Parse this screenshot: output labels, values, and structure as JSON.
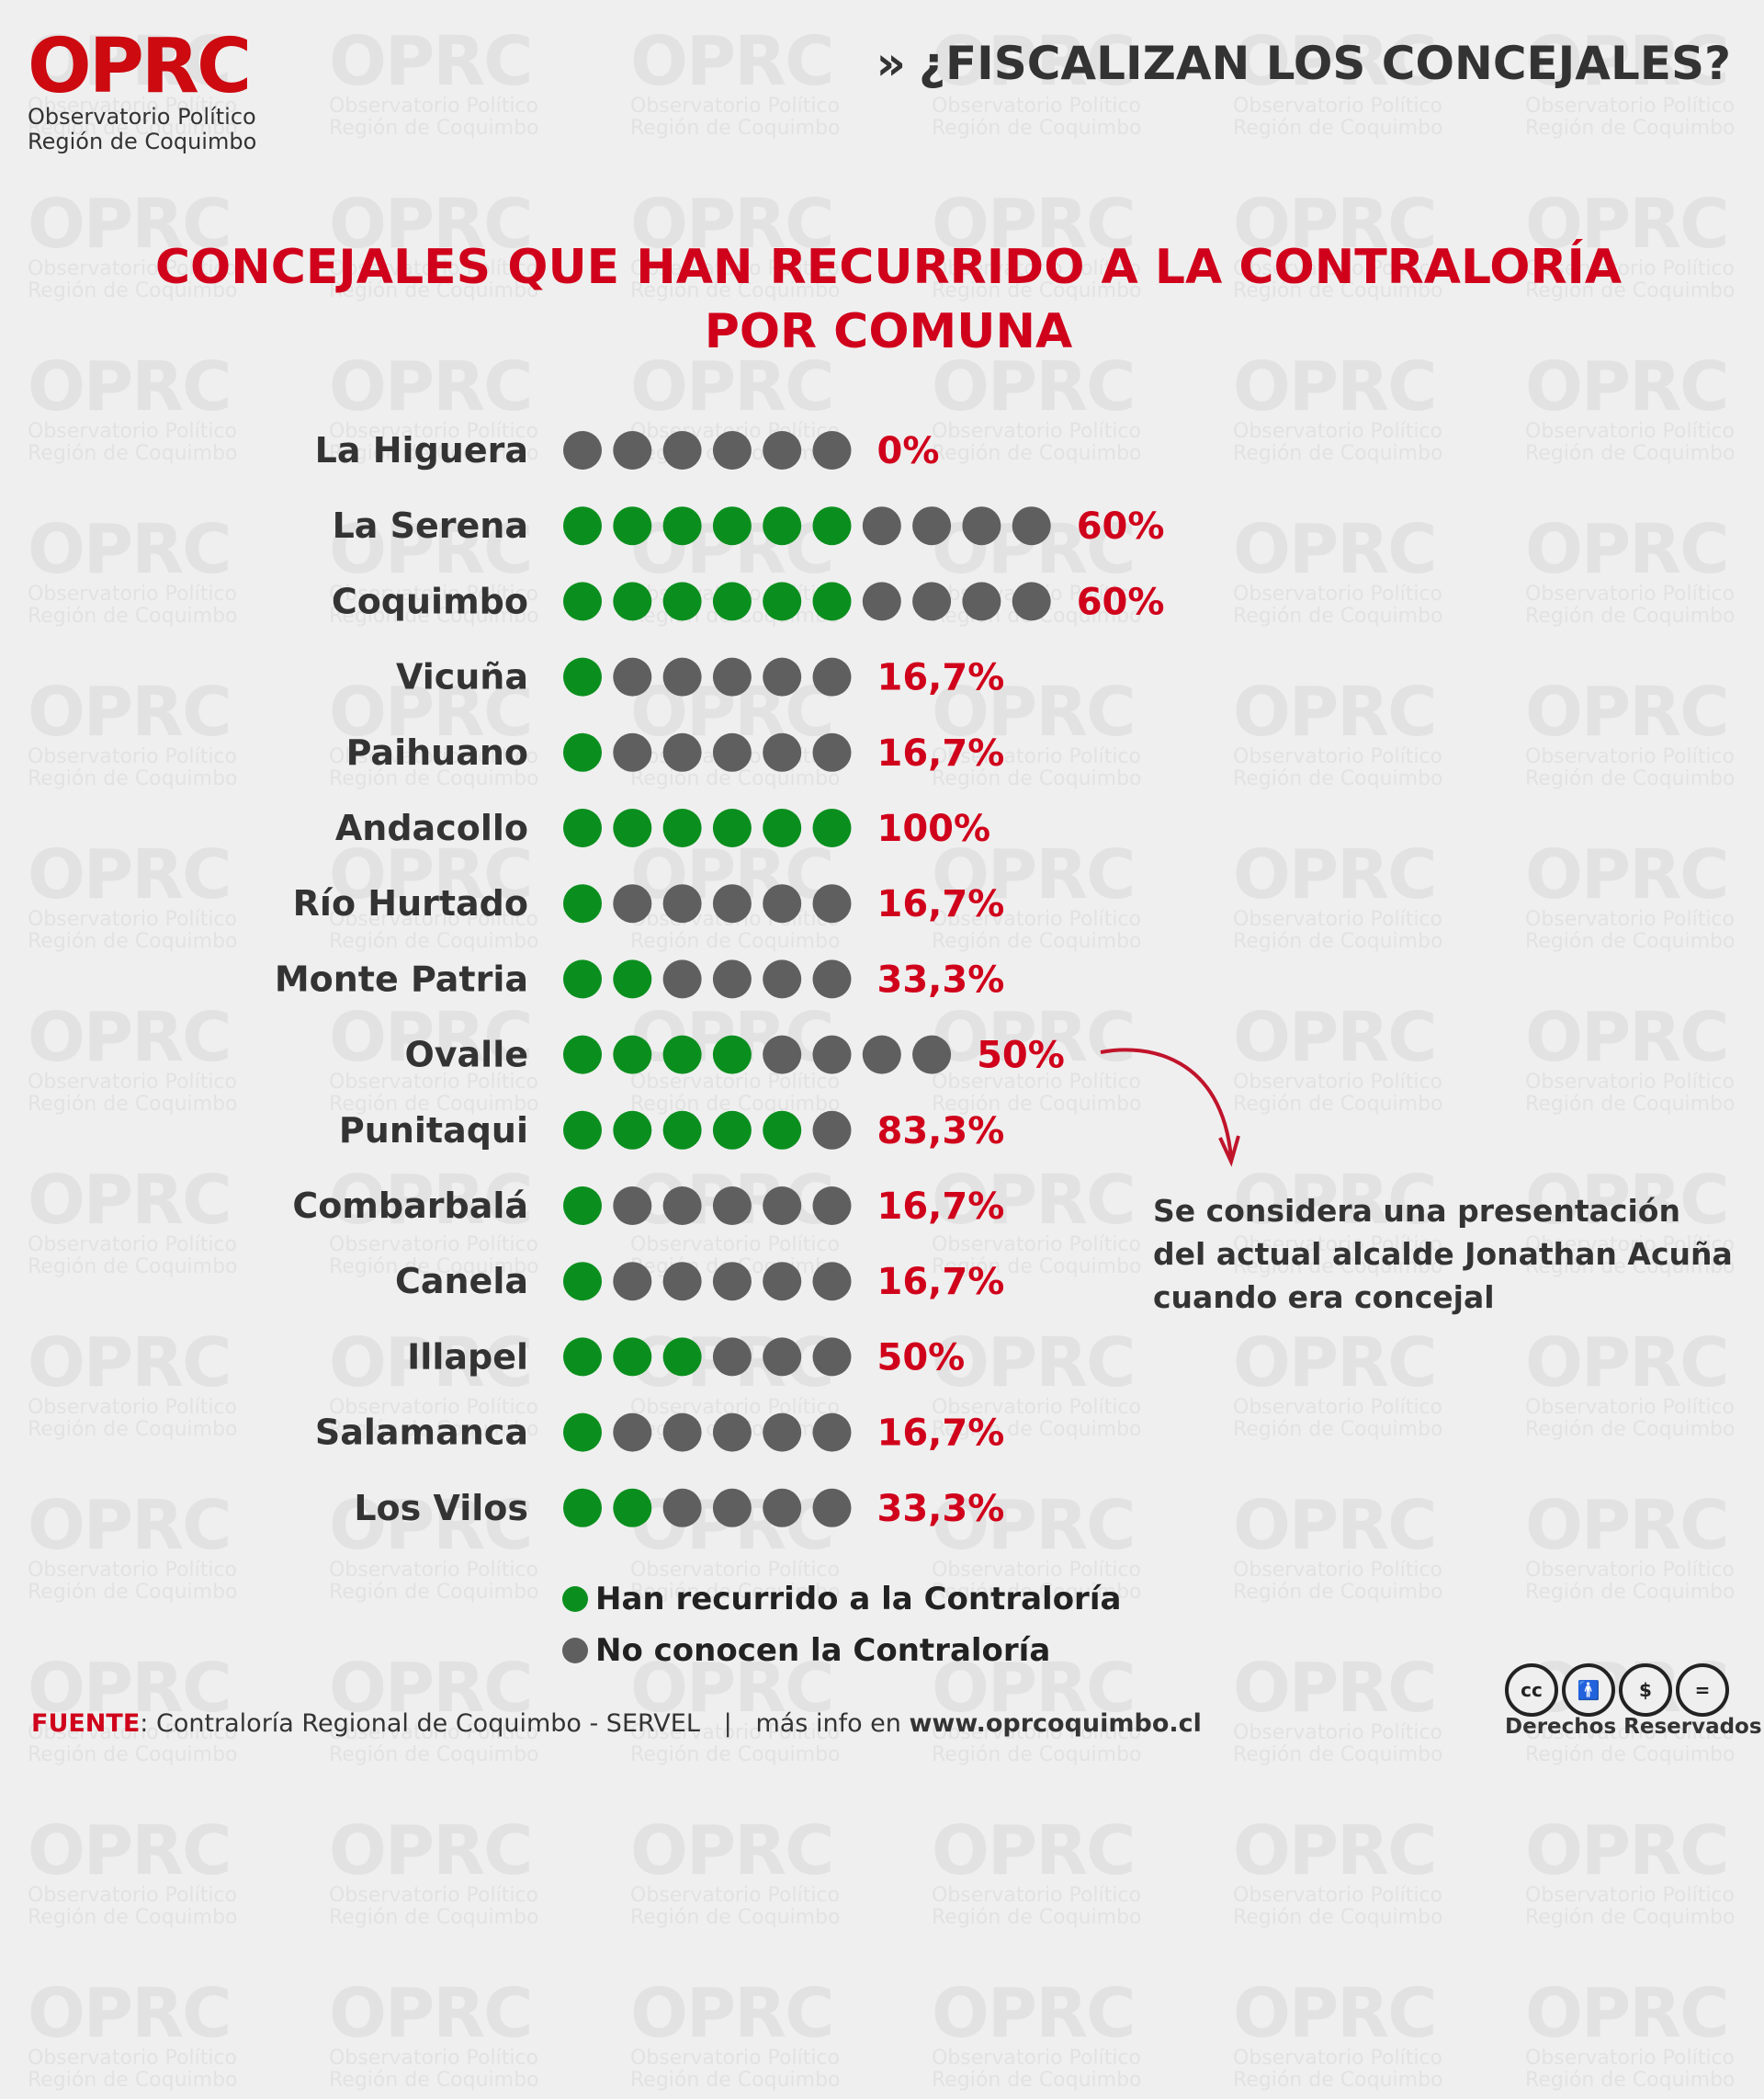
{
  "brand": {
    "logo": "OPRC",
    "name_line1": "Observatorio Político",
    "name_line2": "Región de Coquimbo"
  },
  "header": {
    "chevron": "»",
    "title": "¿FISCALIZAN LOS CONCEJALES?"
  },
  "colors": {
    "accent": "#d0021b",
    "recurred": "#0a8f1e",
    "not_recurred": "#5f5f5f"
  },
  "chart_data": {
    "type": "dot-matrix",
    "title_line1": "CONCEJALES QUE HAN RECURRIDO A LA CONTRALORÍA",
    "title_line2": "POR COMUNA",
    "rows": [
      {
        "comuna": "La Higuera",
        "recurred": 0,
        "total": 6,
        "label": "0%"
      },
      {
        "comuna": "La Serena",
        "recurred": 6,
        "total": 10,
        "label": "60%"
      },
      {
        "comuna": "Coquimbo",
        "recurred": 6,
        "total": 10,
        "label": "60%"
      },
      {
        "comuna": "Vicuña",
        "recurred": 1,
        "total": 6,
        "label": "16,7%"
      },
      {
        "comuna": "Paihuano",
        "recurred": 1,
        "total": 6,
        "label": "16,7%"
      },
      {
        "comuna": "Andacollo",
        "recurred": 6,
        "total": 6,
        "label": "100%"
      },
      {
        "comuna": "Río Hurtado",
        "recurred": 1,
        "total": 6,
        "label": "16,7%"
      },
      {
        "comuna": "Monte Patria",
        "recurred": 2,
        "total": 6,
        "label": "33,3%"
      },
      {
        "comuna": "Ovalle",
        "recurred": 4,
        "total": 8,
        "label": "50%"
      },
      {
        "comuna": "Punitaqui",
        "recurred": 5,
        "total": 6,
        "label": "83,3%"
      },
      {
        "comuna": "Combarbalá",
        "recurred": 1,
        "total": 6,
        "label": "16,7%"
      },
      {
        "comuna": "Canela",
        "recurred": 1,
        "total": 6,
        "label": "16,7%"
      },
      {
        "comuna": "Illapel",
        "recurred": 3,
        "total": 6,
        "label": "50%"
      },
      {
        "comuna": "Salamanca",
        "recurred": 1,
        "total": 6,
        "label": "16,7%"
      },
      {
        "comuna": "Los Vilos",
        "recurred": 2,
        "total": 6,
        "label": "33,3%"
      }
    ],
    "legend": [
      {
        "label": "Han recurrido a la Contraloría",
        "color": "#0a8f1e"
      },
      {
        "label": "No conocen la Contraloría",
        "color": "#5f5f5f"
      }
    ],
    "annotation": {
      "target": "Ovalle",
      "text": "Se considera una presentación del actual alcalde Jonathan Acuña cuando era concejal"
    }
  },
  "footer": {
    "source_label": "FUENTE",
    "source_text": ": Contraloría Regional de Coquimbo - SERVEL   |   más info en ",
    "site": "www.oprcoquimbo.cl",
    "cc_icons": [
      "cc",
      "by",
      "nc",
      "nd"
    ],
    "rights": "Derechos Reservados"
  }
}
